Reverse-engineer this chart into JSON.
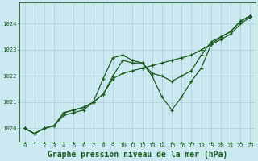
{
  "title": "Graphe pression niveau de la mer (hPa)",
  "background_color": "#cce8f0",
  "grid_color": "#aaccd8",
  "line_color": "#1a5c20",
  "x_values": [
    0,
    1,
    2,
    3,
    4,
    5,
    6,
    7,
    8,
    9,
    10,
    11,
    12,
    13,
    14,
    15,
    16,
    17,
    18,
    19,
    20,
    21,
    22,
    23
  ],
  "series_high": [
    1020.0,
    1019.8,
    1020.0,
    1020.1,
    1020.6,
    1020.7,
    1020.8,
    1021.0,
    1021.9,
    1022.7,
    1022.8,
    1022.6,
    1022.5,
    1022.1,
    1022.0,
    1021.8,
    1022.0,
    1022.2,
    1022.8,
    1023.3,
    1023.5,
    1023.7,
    1024.1,
    1024.3
  ],
  "series_low": [
    1020.0,
    1019.8,
    1020.0,
    1020.1,
    1020.6,
    1020.7,
    1020.8,
    1021.0,
    1021.3,
    1022.0,
    1022.6,
    1022.5,
    1022.5,
    1022.0,
    1021.2,
    1020.7,
    1021.2,
    1021.8,
    1022.3,
    1023.2,
    1023.5,
    1023.7,
    1024.1,
    1024.3
  ],
  "series_trend": [
    1020.0,
    1019.8,
    1020.0,
    1020.1,
    1020.5,
    1020.6,
    1020.7,
    1021.0,
    1021.3,
    1021.9,
    1022.1,
    1022.2,
    1022.3,
    1022.4,
    1022.5,
    1022.6,
    1022.7,
    1022.8,
    1023.0,
    1023.2,
    1023.4,
    1023.6,
    1024.0,
    1024.25
  ],
  "ylim_min": 1019.5,
  "ylim_max": 1024.8,
  "yticks": [
    1020,
    1021,
    1022,
    1023,
    1024
  ],
  "marker": "+",
  "marker_size": 3,
  "line_width": 0.9,
  "title_fontsize": 7.0,
  "tick_fontsize": 5.2
}
